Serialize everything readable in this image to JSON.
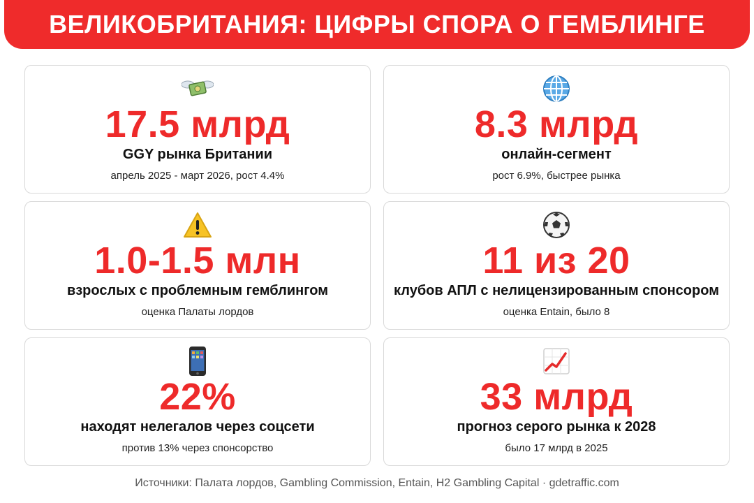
{
  "title": "ВЕЛИКОБРИТАНИЯ: ЦИФРЫ СПОРА О ГЕМБЛИНГЕ",
  "cards": [
    {
      "icon": "money-with-wings-icon",
      "value": "17.5 млрд",
      "label": "GGY рынка Британии",
      "note": "апрель 2025 - март 2026, рост 4.4%"
    },
    {
      "icon": "globe-icon",
      "value": "8.3 млрд",
      "label": "онлайн-сегмент",
      "note": "рост 6.9%, быстрее рынка"
    },
    {
      "icon": "warning-icon",
      "value": "1.0-1.5 млн",
      "label": "взрослых с проблемным гемблингом",
      "note": "оценка Палаты лордов"
    },
    {
      "icon": "soccer-ball-icon",
      "value": "11 из 20",
      "label": "клубов АПЛ с нелицензированным спонсором",
      "note": "оценка Entain, было 8"
    },
    {
      "icon": "mobile-phone-icon",
      "value": "22%",
      "label": "находят нелегалов через соцсети",
      "note": "против 13% через спонсорство"
    },
    {
      "icon": "chart-increasing-icon",
      "value": "33 млрд",
      "label": "прогноз серого рынка к 2028",
      "note": "было 17 млрд в 2025"
    }
  ],
  "footer": "Источники: Палата лордов, Gambling Commission, Entain, H2 Gambling Capital · gdetraffic.com",
  "colors": {
    "accent": "#ee2a2a",
    "border": "#d9d9d9"
  }
}
